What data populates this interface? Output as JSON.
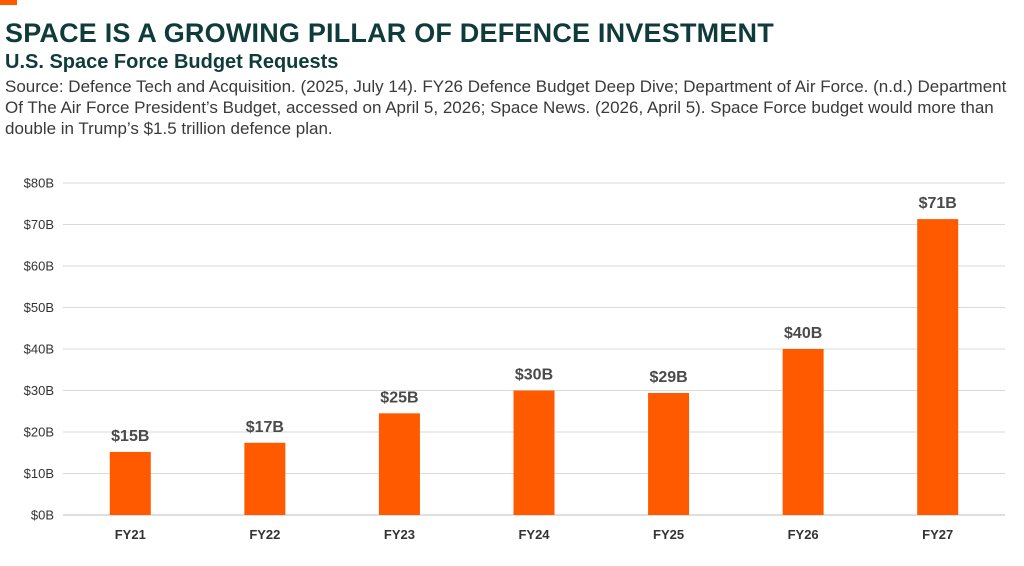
{
  "header": {
    "title": "SPACE IS A GROWING PILLAR OF DEFENCE INVESTMENT",
    "subtitle": "U.S. Space Force Budget Requests",
    "source": "Source: Defence Tech and Acquisition. (2025, July 14). FY26 Defence Budget Deep Dive; Department of Air Force. (n.d.) Department Of The Air Force President’s Budget, accessed on April 5, 2026; Space News. (2026, April 5). Space Force budget would more than double in Trump’s $1.5 trillion defence plan."
  },
  "colors": {
    "bar": "#ff5a00",
    "accent": "#ff5a00",
    "title": "#0f3b3a"
  },
  "chart_data": {
    "type": "bar",
    "title": "U.S. Space Force Budget Requests",
    "xlabel": "",
    "ylabel": "",
    "categories": [
      "FY21",
      "FY22",
      "FY23",
      "FY24",
      "FY25",
      "FY26",
      "FY27"
    ],
    "values": [
      15.2,
      17.4,
      24.5,
      30.0,
      29.4,
      40.0,
      71.3
    ],
    "data_labels": [
      "$15B",
      "$17B",
      "$25B",
      "$30B",
      "$29B",
      "$40B",
      "$71B"
    ],
    "ylim": [
      0,
      80
    ],
    "y_ticks": [
      0,
      10,
      20,
      30,
      40,
      50,
      60,
      70,
      80
    ],
    "y_tick_labels": [
      "$0B",
      "$10B",
      "$20B",
      "$30B",
      "$40B",
      "$50B",
      "$60B",
      "$70B",
      "$80B"
    ],
    "grid": true,
    "legend": "none"
  }
}
